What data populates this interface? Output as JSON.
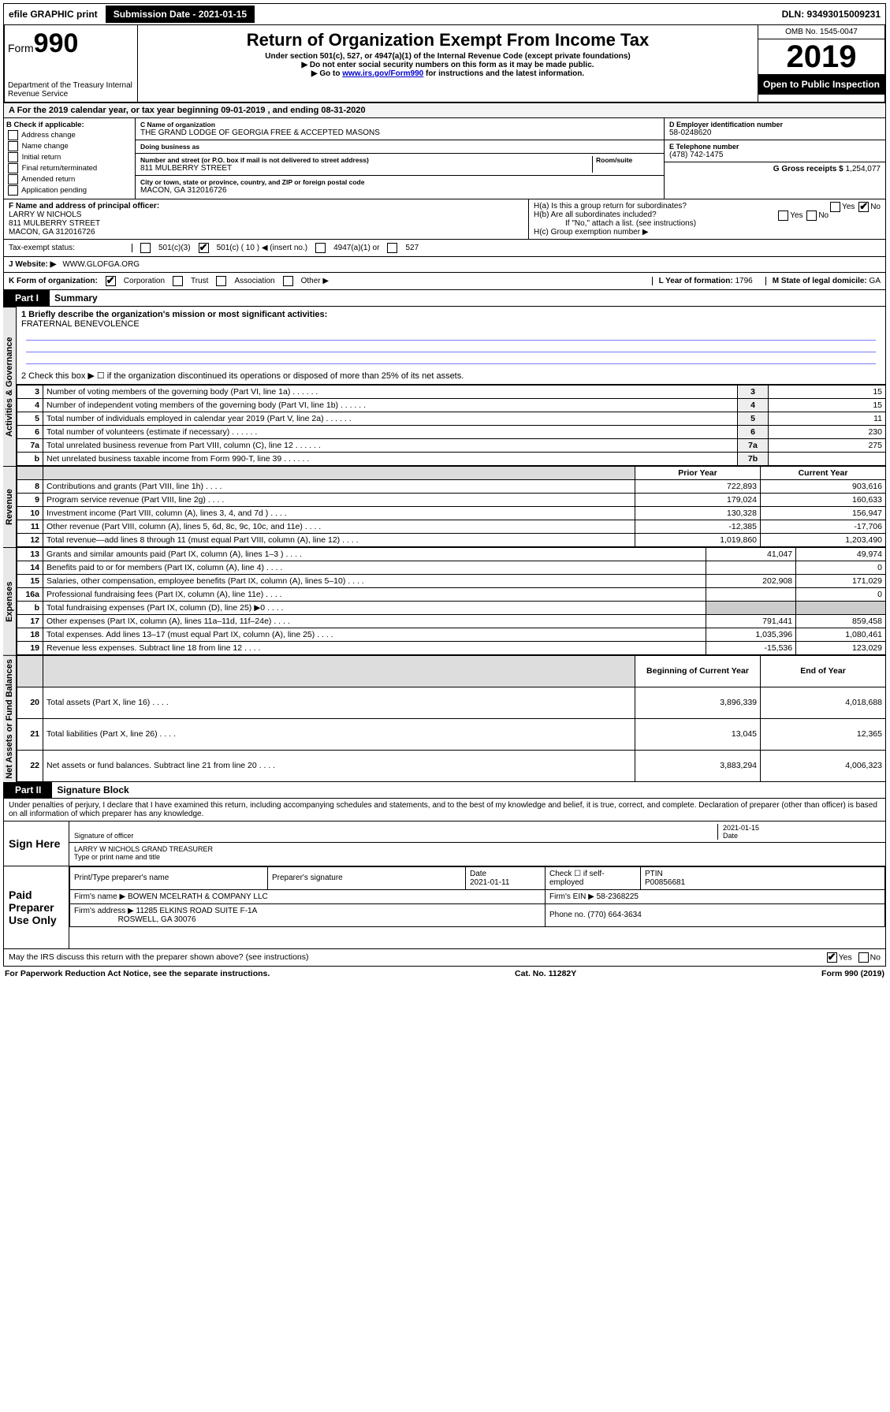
{
  "topbar": {
    "efile": "efile GRAPHIC print",
    "submission": "Submission Date - 2021-01-15",
    "dln": "DLN: 93493015009231"
  },
  "header": {
    "form_label": "Form",
    "form_number": "990",
    "dept": "Department of the Treasury Internal Revenue Service",
    "title": "Return of Organization Exempt From Income Tax",
    "sub1": "Under section 501(c), 527, or 4947(a)(1) of the Internal Revenue Code (except private foundations)",
    "sub2": "▶ Do not enter social security numbers on this form as it may be made public.",
    "sub3_pre": "▶ Go to ",
    "sub3_link": "www.irs.gov/Form990",
    "sub3_post": " for instructions and the latest information.",
    "omb": "OMB No. 1545-0047",
    "year": "2019",
    "open": "Open to Public Inspection"
  },
  "yearline": "A  For the 2019 calendar year, or tax year beginning 09-01-2019     , and ending 08-31-2020",
  "sectionB": {
    "title": "B Check if applicable:",
    "opts": [
      "Address change",
      "Name change",
      "Initial return",
      "Final return/terminated",
      "Amended return",
      "Application pending"
    ]
  },
  "sectionC": {
    "name_label": "C Name of organization",
    "name": "THE GRAND LODGE OF GEORGIA FREE & ACCEPTED MASONS",
    "dba_label": "Doing business as",
    "dba": "",
    "street_label": "Number and street (or P.O. box if mail is not delivered to street address)",
    "room_label": "Room/suite",
    "street": "811 MULBERRY STREET",
    "city_label": "City or town, state or province, country, and ZIP or foreign postal code",
    "city": "MACON, GA  312016726"
  },
  "sectionD": {
    "ein_label": "D Employer identification number",
    "ein": "58-0248620",
    "tel_label": "E Telephone number",
    "tel": "(478) 742-1475",
    "gross_label": "G Gross receipts $",
    "gross": "1,254,077"
  },
  "sectionF": {
    "label": "F  Name and address of principal officer:",
    "name": "LARRY W NICHOLS",
    "addr1": "811 MULBERRY STREET",
    "addr2": "MACON, GA  312016726"
  },
  "sectionH": {
    "a": "H(a)  Is this a group return for subordinates?",
    "b": "H(b)  Are all subordinates included?",
    "b_note": "If \"No,\" attach a list. (see instructions)",
    "c": "H(c)  Group exemption number ▶"
  },
  "status": {
    "label": "Tax-exempt status:",
    "c3": "501(c)(3)",
    "c_paren": "501(c) ( 10 ) ◀ (insert no.)",
    "a1": "4947(a)(1) or",
    "527": "527"
  },
  "website": {
    "label": "J Website: ▶",
    "value": "WWW.GLOFGA.ORG"
  },
  "kline": {
    "label": "K Form of organization:",
    "opts": [
      "Corporation",
      "Trust",
      "Association",
      "Other ▶"
    ],
    "year_label": "L Year of formation:",
    "year": "1796",
    "state_label": "M State of legal domicile:",
    "state": "GA"
  },
  "part1": {
    "header": "Part I",
    "title": "Summary"
  },
  "summary": {
    "q1": "1  Briefly describe the organization's mission or most significant activities:",
    "mission": "FRATERNAL BENEVOLENCE",
    "q2": "2  Check this box ▶ ☐  if the organization discontinued its operations or disposed of more than 25% of its net assets."
  },
  "side_labels": {
    "gov": "Activities & Governance",
    "rev": "Revenue",
    "exp": "Expenses",
    "net": "Net Assets or Fund Balances"
  },
  "gov_rows": [
    {
      "n": "3",
      "t": "Number of voting members of the governing body (Part VI, line 1a)",
      "box": "3",
      "v": "15"
    },
    {
      "n": "4",
      "t": "Number of independent voting members of the governing body (Part VI, line 1b)",
      "box": "4",
      "v": "15"
    },
    {
      "n": "5",
      "t": "Total number of individuals employed in calendar year 2019 (Part V, line 2a)",
      "box": "5",
      "v": "11"
    },
    {
      "n": "6",
      "t": "Total number of volunteers (estimate if necessary)",
      "box": "6",
      "v": "230"
    },
    {
      "n": "7a",
      "t": "Total unrelated business revenue from Part VIII, column (C), line 12",
      "box": "7a",
      "v": "275"
    },
    {
      "n": "b",
      "t": "Net unrelated business taxable income from Form 990-T, line 39",
      "box": "7b",
      "v": ""
    }
  ],
  "two_col_header": {
    "prior": "Prior Year",
    "current": "Current Year"
  },
  "rev_rows": [
    {
      "n": "8",
      "t": "Contributions and grants (Part VIII, line 1h)",
      "p": "722,893",
      "c": "903,616"
    },
    {
      "n": "9",
      "t": "Program service revenue (Part VIII, line 2g)",
      "p": "179,024",
      "c": "160,633"
    },
    {
      "n": "10",
      "t": "Investment income (Part VIII, column (A), lines 3, 4, and 7d )",
      "p": "130,328",
      "c": "156,947"
    },
    {
      "n": "11",
      "t": "Other revenue (Part VIII, column (A), lines 5, 6d, 8c, 9c, 10c, and 11e)",
      "p": "-12,385",
      "c": "-17,706"
    },
    {
      "n": "12",
      "t": "Total revenue—add lines 8 through 11 (must equal Part VIII, column (A), line 12)",
      "p": "1,019,860",
      "c": "1,203,490"
    }
  ],
  "exp_rows": [
    {
      "n": "13",
      "t": "Grants and similar amounts paid (Part IX, column (A), lines 1–3 )",
      "p": "41,047",
      "c": "49,974"
    },
    {
      "n": "14",
      "t": "Benefits paid to or for members (Part IX, column (A), line 4)",
      "p": "",
      "c": "0"
    },
    {
      "n": "15",
      "t": "Salaries, other compensation, employee benefits (Part IX, column (A), lines 5–10)",
      "p": "202,908",
      "c": "171,029"
    },
    {
      "n": "16a",
      "t": "Professional fundraising fees (Part IX, column (A), line 11e)",
      "p": "",
      "c": "0"
    },
    {
      "n": "b",
      "t": "Total fundraising expenses (Part IX, column (D), line 25) ▶0",
      "p": "GRAY",
      "c": "GRAY"
    },
    {
      "n": "17",
      "t": "Other expenses (Part IX, column (A), lines 11a–11d, 11f–24e)",
      "p": "791,441",
      "c": "859,458"
    },
    {
      "n": "18",
      "t": "Total expenses. Add lines 13–17 (must equal Part IX, column (A), line 25)",
      "p": "1,035,396",
      "c": "1,080,461"
    },
    {
      "n": "19",
      "t": "Revenue less expenses. Subtract line 18 from line 12",
      "p": "-15,536",
      "c": "123,029"
    }
  ],
  "net_header": {
    "prior": "Beginning of Current Year",
    "current": "End of Year"
  },
  "net_rows": [
    {
      "n": "20",
      "t": "Total assets (Part X, line 16)",
      "p": "3,896,339",
      "c": "4,018,688"
    },
    {
      "n": "21",
      "t": "Total liabilities (Part X, line 26)",
      "p": "13,045",
      "c": "12,365"
    },
    {
      "n": "22",
      "t": "Net assets or fund balances. Subtract line 21 from line 20",
      "p": "3,883,294",
      "c": "4,006,323"
    }
  ],
  "part2": {
    "header": "Part II",
    "title": "Signature Block"
  },
  "perjury": "Under penalties of perjury, I declare that I have examined this return, including accompanying schedules and statements, and to the best of my knowledge and belief, it is true, correct, and complete. Declaration of preparer (other than officer) is based on all information of which preparer has any knowledge.",
  "sign": {
    "here": "Sign Here",
    "date": "2021-01-15",
    "sig_label": "Signature of officer",
    "date_label": "Date",
    "name": "LARRY W NICHOLS  GRAND TREASURER",
    "name_label": "Type or print name and title"
  },
  "paid": {
    "label": "Paid Preparer Use Only",
    "h1": "Print/Type preparer's name",
    "h2": "Preparer's signature",
    "h3": "Date",
    "date": "2021-01-11",
    "h4": "Check ☐ if self-employed",
    "h5": "PTIN",
    "ptin": "P00856681",
    "firm_label": "Firm's name      ▶",
    "firm": "BOWEN MCELRATH & COMPANY LLC",
    "ein_label": "Firm's EIN ▶",
    "ein": "58-2368225",
    "addr_label": "Firm's address ▶",
    "addr1": "11285 ELKINS ROAD SUITE F-1A",
    "addr2": "ROSWELL, GA  30076",
    "phone_label": "Phone no.",
    "phone": "(770) 664-3634"
  },
  "discuss": "May the IRS discuss this return with the preparer shown above? (see instructions)",
  "footer": {
    "left": "For Paperwork Reduction Act Notice, see the separate instructions.",
    "mid": "Cat. No. 11282Y",
    "right": "Form 990 (2019)"
  }
}
